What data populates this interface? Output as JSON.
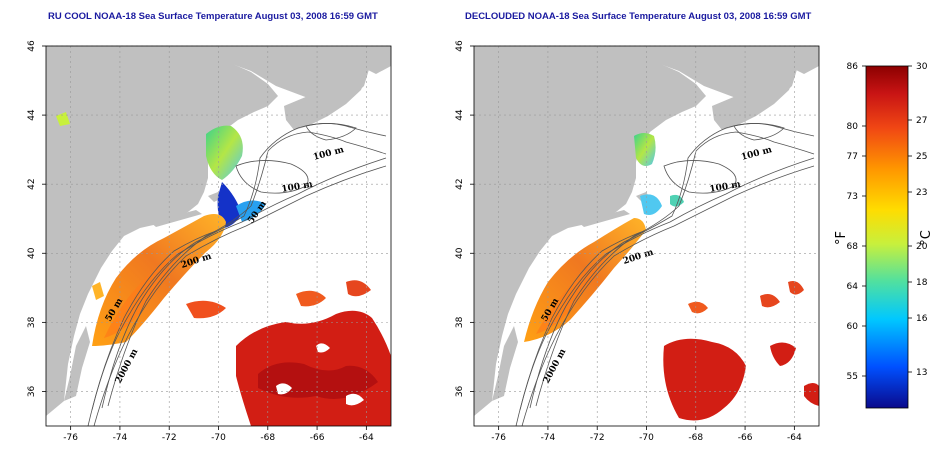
{
  "panels": [
    {
      "id": "left",
      "title": "RU COOL NOAA-18 Sea Surface Temperature August 03, 2008 16:59 GMT",
      "contour_labels": [
        "100 m",
        "100 m",
        "50 m",
        "200 m",
        "50 m",
        "2000 m"
      ]
    },
    {
      "id": "right",
      "title": "DECLOUDED NOAA-18 Sea Surface Temperature August 03, 2008 16:59 GMT",
      "contour_labels": [
        "100 m",
        "100 m",
        "200 m",
        "50 m",
        "2000 m"
      ]
    }
  ],
  "map": {
    "lon_ticks": [
      "-76",
      "-74",
      "-72",
      "-70",
      "-68",
      "-66",
      "-64"
    ],
    "lat_ticks": [
      "46",
      "44",
      "42",
      "40",
      "38",
      "36"
    ],
    "lon_range": [
      -77,
      -63
    ],
    "lat_range": [
      35,
      46
    ],
    "grid": "dotted",
    "land_color": "#c0c0c0",
    "ocean_no_data_color": "#ffffff"
  },
  "colorbar": {
    "fahrenheit_label": "°F",
    "celsius_label": "°C",
    "fahrenheit_ticks": [
      "86",
      "80",
      "77",
      "73",
      "68",
      "64",
      "60",
      "55"
    ],
    "celsius_ticks": [
      "30",
      "27",
      "25",
      "23",
      "20",
      "18",
      "16",
      "13"
    ],
    "celsius_range": [
      11,
      30
    ],
    "colors": [
      "#0a0a8c",
      "#0050ff",
      "#00c8ff",
      "#50e0a0",
      "#c8f03c",
      "#ffdc00",
      "#ff9600",
      "#f04614",
      "#c81414",
      "#8c0000"
    ]
  }
}
